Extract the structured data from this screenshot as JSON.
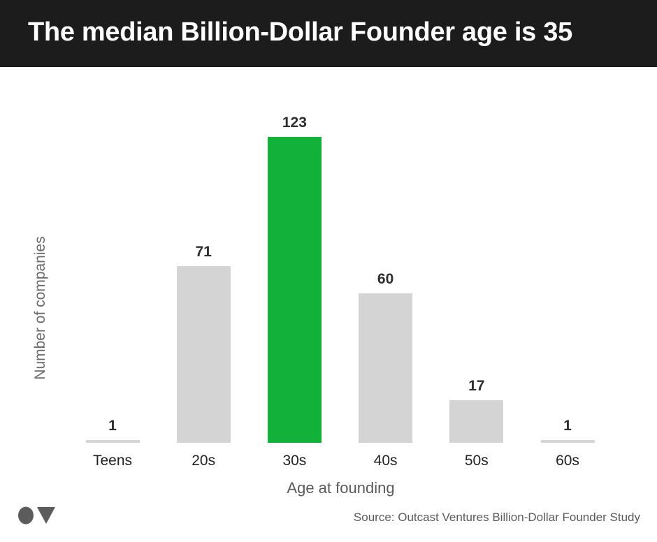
{
  "header": {
    "title": "The median Billion-Dollar Founder age is 35",
    "background": "#1c1c1c"
  },
  "footer": {
    "source": "Source: Outcast Ventures Billion-Dollar Founder Study",
    "logo": "outcast-ventures-logo"
  },
  "colors": {
    "highlight": "#12b23a",
    "default_bar": "#d4d4d4",
    "label_text": "#2e2e2e"
  },
  "chart_data": {
    "type": "bar",
    "title": "The median Billion-Dollar Founder age is 35",
    "xlabel": "Age at founding",
    "ylabel": "Number of companies",
    "categories": [
      "Teens",
      "20s",
      "30s",
      "40s",
      "50s",
      "60s"
    ],
    "values": [
      1,
      71,
      123,
      60,
      17,
      1
    ],
    "highlighted_category": "30s",
    "data_labels": [
      "1",
      "71",
      "123",
      "60",
      "17",
      "1"
    ],
    "ylim": [
      0,
      130
    ],
    "grid": false,
    "legend": "none",
    "y_axis_ticks": "none"
  }
}
